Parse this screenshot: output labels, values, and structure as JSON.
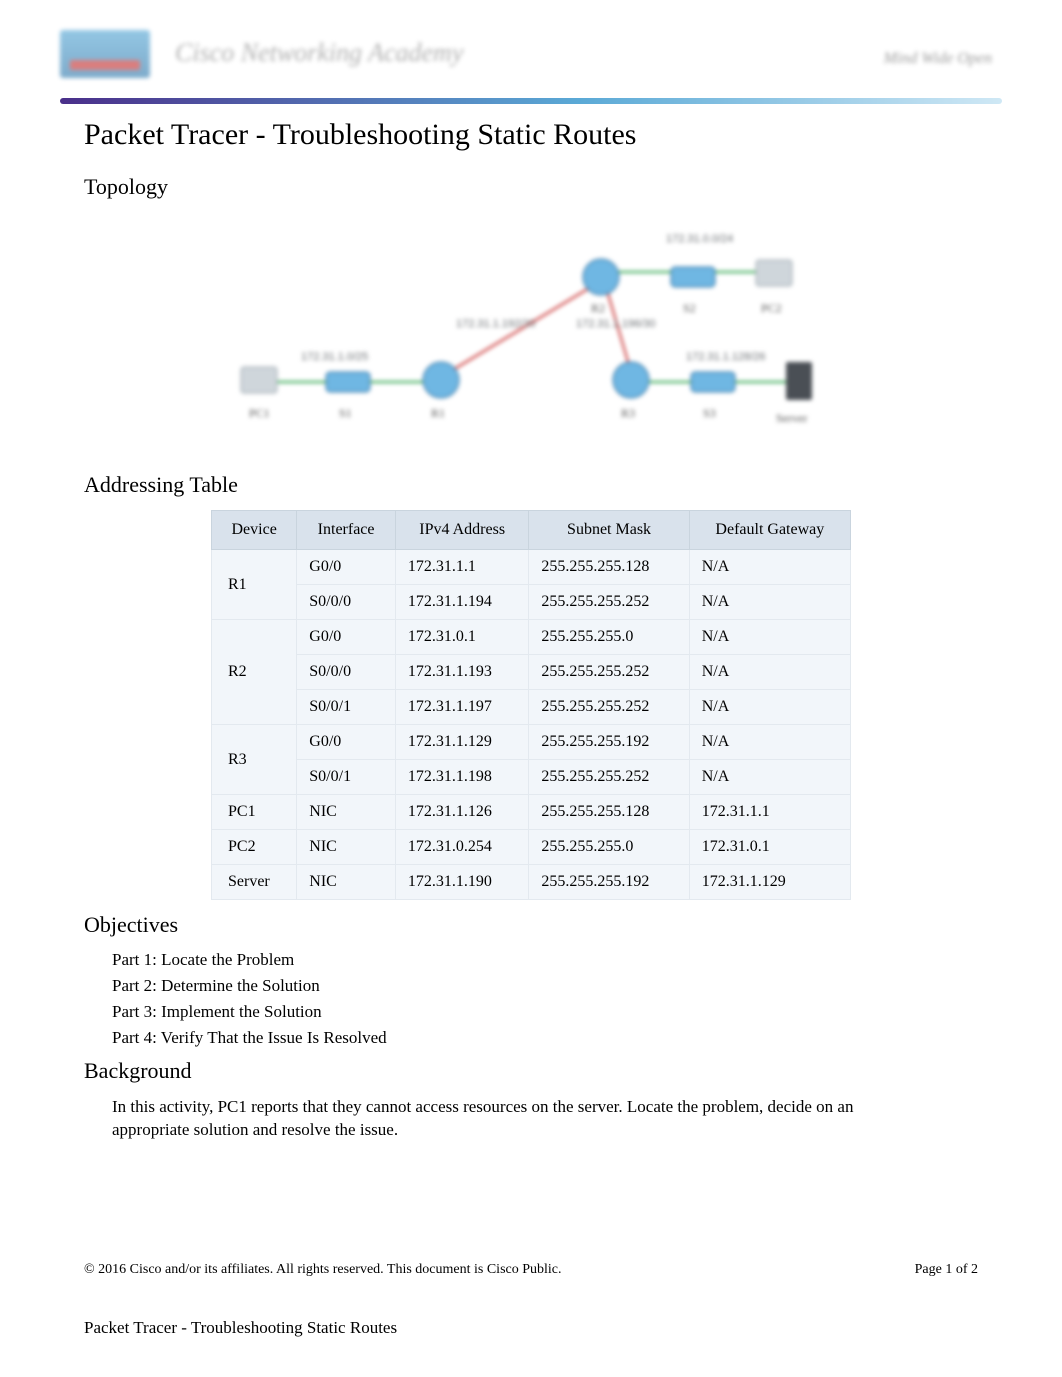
{
  "header": {
    "brand_title": "Cisco Networking Academy",
    "right_text": "Mind Wide Open",
    "logo_bg_top": "#5aa9d6",
    "logo_bg_bottom": "#3a7fb0",
    "gradient_left": "#4a2f8a",
    "gradient_mid": "#5aa9d6",
    "gradient_right": "#cfe8f5"
  },
  "title": "Packet Tracer - Troubleshooting Static Routes",
  "sections": {
    "topology": "Topology",
    "addressing": "Addressing Table",
    "objectives": "Objectives",
    "background": "Background"
  },
  "topology": {
    "node_fill": "#6fb7e3",
    "node_stroke": "#2d6a9a",
    "pc_fill": "#cfd6db",
    "server_fill": "#4a4f55",
    "link_color": "#2aa24a",
    "link_red": "#c93434",
    "label_color": "#6b6f73",
    "cloud_labels": {
      "left": "172.31.1.0/25",
      "right": "172.31.1.128/26",
      "top": "172.31.0.0/24",
      "mid_left": "172.31.1.192/30",
      "mid_right": "172.31.1.196/30"
    },
    "nodes": {
      "pc1": "PC1",
      "s1": "S1",
      "r1": "R1",
      "pc2": "PC2",
      "s2": "S2",
      "r2": "R2",
      "r3": "R3",
      "s3": "S3",
      "srv": "Server"
    }
  },
  "addressing_table": {
    "header_bg": "#d9e2ec",
    "row_bg": "#f2f6fa",
    "border_color": "#e3e9ef",
    "columns": [
      "Device",
      "Interface",
      "IPv4 Address",
      "Subnet Mask",
      "Default Gateway"
    ],
    "rows": [
      {
        "device": "R1",
        "iface": "G0/0",
        "ip": "172.31.1.1",
        "mask": "255.255.255.128",
        "gw": "N/A"
      },
      {
        "device": "R1",
        "iface": "S0/0/0",
        "ip": "172.31.1.194",
        "mask": "255.255.255.252",
        "gw": "N/A"
      },
      {
        "device": "R2",
        "iface": "G0/0",
        "ip": "172.31.0.1",
        "mask": "255.255.255.0",
        "gw": "N/A"
      },
      {
        "device": "R2",
        "iface": "S0/0/0",
        "ip": "172.31.1.193",
        "mask": "255.255.255.252",
        "gw": "N/A"
      },
      {
        "device": "R2",
        "iface": "S0/0/1",
        "ip": "172.31.1.197",
        "mask": "255.255.255.252",
        "gw": "N/A"
      },
      {
        "device": "R3",
        "iface": "G0/0",
        "ip": "172.31.1.129",
        "mask": "255.255.255.192",
        "gw": "N/A"
      },
      {
        "device": "R3",
        "iface": "S0/0/1",
        "ip": "172.31.1.198",
        "mask": "255.255.255.252",
        "gw": "N/A"
      },
      {
        "device": "PC1",
        "iface": "NIC",
        "ip": "172.31.1.126",
        "mask": "255.255.255.128",
        "gw": "172.31.1.1"
      },
      {
        "device": "PC2",
        "iface": "NIC",
        "ip": "172.31.0.254",
        "mask": "255.255.255.0",
        "gw": "172.31.0.1"
      },
      {
        "device": "Server",
        "iface": "NIC",
        "ip": "172.31.1.190",
        "mask": "255.255.255.192",
        "gw": "172.31.1.129"
      }
    ],
    "rowspans": {
      "R1": 2,
      "R2": 3,
      "R3": 2,
      "PC1": 1,
      "PC2": 1,
      "Server": 1
    }
  },
  "objectives": {
    "part1": "Part 1: Locate the Problem",
    "part2": "Part 2: Determine the Solution",
    "part3": "Part 3: Implement the Solution",
    "part4": "Part 4: Verify That the Issue Is Resolved"
  },
  "background_text": "In this activity, PC1 reports that they cannot access resources on the server. Locate the problem, decide on an appropriate solution and resolve the issue.",
  "footer": {
    "copyright": "© 2016 Cisco and/or its affiliates. All rights reserved. This document is Cisco Public.",
    "page_label": "Page  1 of 2"
  },
  "running_title": "Packet Tracer - Troubleshooting Static Routes"
}
